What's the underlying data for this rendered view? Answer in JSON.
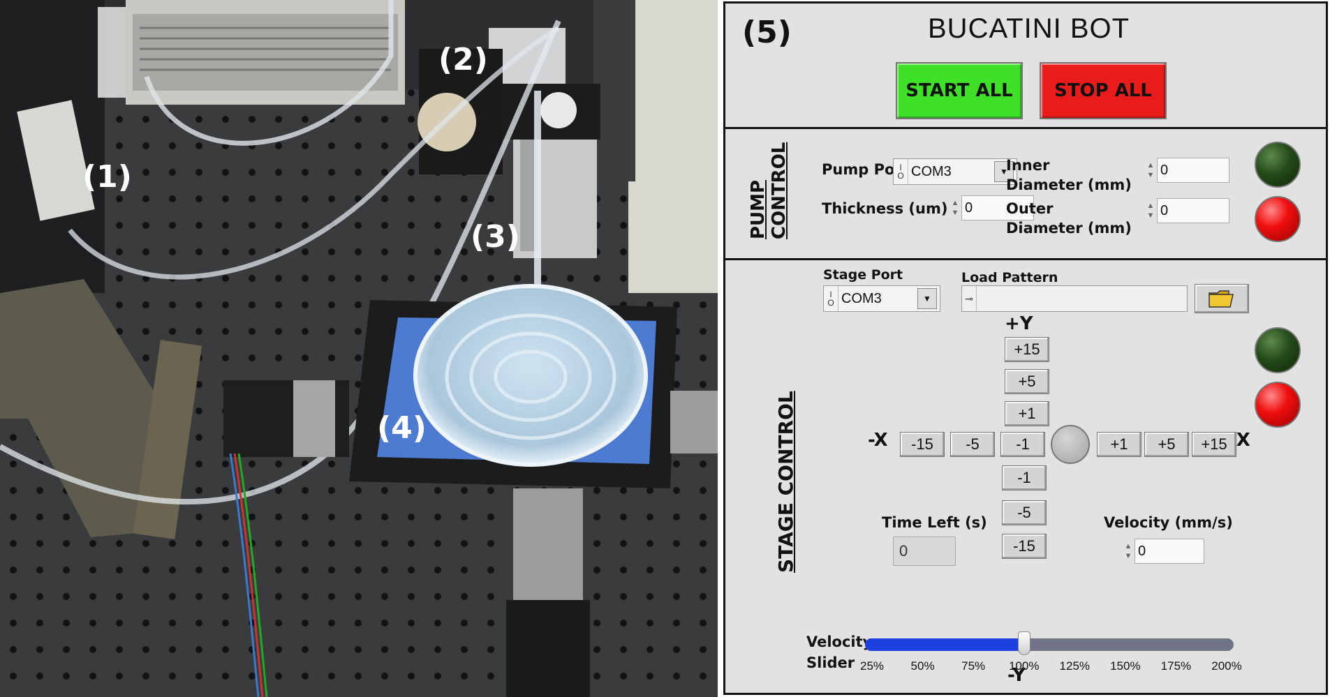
{
  "photo": {
    "labels": [
      "(1)",
      "(2)",
      "(3)",
      "(4)"
    ]
  },
  "ui": {
    "panel_tag": "(5)",
    "title": "BUCATINI BOT",
    "start_label": "START ALL",
    "stop_label": "STOP ALL",
    "colors": {
      "start": "#3ee028",
      "stop": "#ea1b1b",
      "panel": "#e2e2e2",
      "slider_fill": "#1d3fe0"
    },
    "pump": {
      "section_label_1": "PUMP",
      "section_label_2": "CONTROL",
      "port_label": "Pump Port",
      "port_value": "COM3",
      "thickness_label": "Thickness (um)",
      "thickness_value": "0",
      "inner_label_1": "Inner",
      "inner_label_2": "Diameter (mm)",
      "inner_value": "0",
      "outer_label_1": "Outer",
      "outer_label_2": "Diameter (mm)",
      "outer_value": "0",
      "led_on": "green",
      "led_off": "red"
    },
    "stage": {
      "section_label": "STAGE CONTROL",
      "port_label": "Stage Port",
      "port_value": "COM3",
      "pattern_label": "Load Pattern",
      "pattern_value": "",
      "plus_y": "+Y",
      "minus_y": "-Y",
      "minus_x": "-X",
      "plus_x": "+X",
      "y_up": [
        "+15",
        "+5",
        "+1"
      ],
      "y_down": [
        "-1",
        "-5",
        "-15"
      ],
      "x_left": [
        "-15",
        "-5",
        "-1"
      ],
      "x_right": [
        "+1",
        "+5",
        "+15"
      ],
      "time_left_label": "Time Left (s)",
      "time_left_value": "0",
      "velocity_label": "Velocity (mm/s)",
      "velocity_value": "0",
      "slider_label_1": "Velocity",
      "slider_label_2": "Slider",
      "slider_ticks": [
        "25%",
        "50%",
        "75%",
        "100%",
        "125%",
        "150%",
        "175%",
        "200%"
      ],
      "slider_value_percent": 100
    }
  }
}
